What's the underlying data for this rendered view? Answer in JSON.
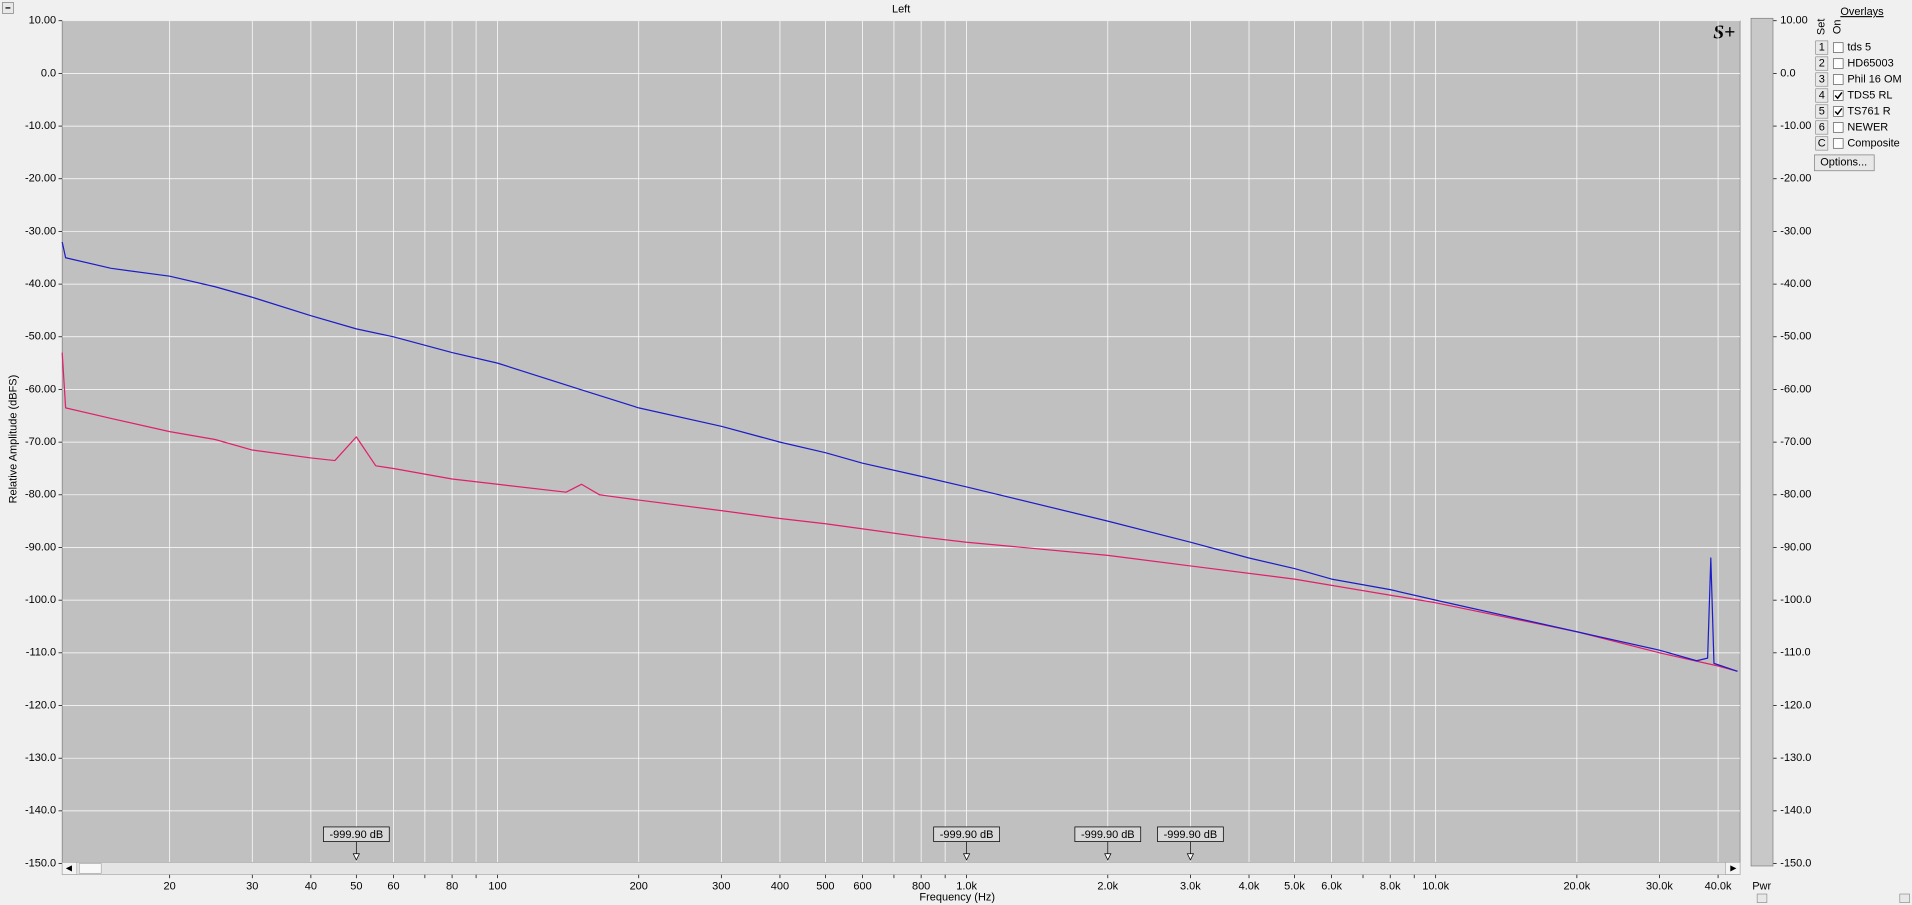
{
  "chart_data": {
    "type": "line",
    "title": "Left",
    "x_label": "Frequency (Hz)",
    "y_label": "Relative Amplitude (dBFS)",
    "logo": "S+",
    "xscale": "log",
    "xlim": [
      11.8,
      44560
    ],
    "ylim": [
      -150,
      10
    ],
    "y2lim": [
      -150,
      10
    ],
    "grid": true,
    "xticks": [
      20,
      30,
      40,
      50,
      60,
      80,
      100,
      200,
      300,
      400,
      500,
      600,
      800,
      {
        "value": 1000,
        "label": "1.0k"
      },
      {
        "value": 2000,
        "label": "2.0k"
      },
      {
        "value": 3000,
        "label": "3.0k"
      },
      {
        "value": 4000,
        "label": "4.0k"
      },
      {
        "value": 5000,
        "label": "5.0k"
      },
      {
        "value": 6000,
        "label": "6.0k"
      },
      {
        "value": 8000,
        "label": "8.0k"
      },
      {
        "value": 10000,
        "label": "10.0k"
      },
      {
        "value": 20000,
        "label": "20.0k"
      },
      {
        "value": 30000,
        "label": "30.0k"
      },
      {
        "value": 40000,
        "label": "40.0k"
      }
    ],
    "xminor_ticks": [
      70,
      90,
      700,
      900,
      7000,
      9000
    ],
    "yticks": [
      {
        "value": 10,
        "label": "10.00"
      },
      {
        "value": 0,
        "label": "0.0"
      },
      {
        "value": -10,
        "label": "-10.00"
      },
      {
        "value": -20,
        "label": "-20.00"
      },
      {
        "value": -30,
        "label": "-30.00"
      },
      {
        "value": -40,
        "label": "-40.00"
      },
      {
        "value": -50,
        "label": "-50.00"
      },
      {
        "value": -60,
        "label": "-60.00"
      },
      {
        "value": -70,
        "label": "-70.00"
      },
      {
        "value": -80,
        "label": "-80.00"
      },
      {
        "value": -90,
        "label": "-90.00"
      },
      {
        "value": -100,
        "label": "-100.0"
      },
      {
        "value": -110,
        "label": "-110.0"
      },
      {
        "value": -120,
        "label": "-120.0"
      },
      {
        "value": -130,
        "label": "-130.0"
      },
      {
        "value": -140,
        "label": "-140.0"
      },
      {
        "value": -150,
        "label": "-150.0"
      }
    ],
    "y2ticks": [
      {
        "value": 10,
        "label": "10.00"
      },
      {
        "value": 0,
        "label": "0.0"
      },
      {
        "value": -10,
        "label": "-10.00"
      },
      {
        "value": -20,
        "label": "-20.00"
      },
      {
        "value": -30,
        "label": "-30.00"
      },
      {
        "value": -40,
        "label": "-40.00"
      },
      {
        "value": -50,
        "label": "-50.00"
      },
      {
        "value": -60,
        "label": "-60.00"
      },
      {
        "value": -70,
        "label": "-70.00"
      },
      {
        "value": -80,
        "label": "-80.00"
      },
      {
        "value": -90,
        "label": "-90.00"
      },
      {
        "value": -100,
        "label": "-100.0"
      },
      {
        "value": -110,
        "label": "-110.0"
      },
      {
        "value": -120,
        "label": "-120.0"
      },
      {
        "value": -130,
        "label": "-130.0"
      },
      {
        "value": -140,
        "label": "-140.0"
      },
      {
        "value": -150,
        "label": "-150.0"
      }
    ],
    "y2_label": "Pwr",
    "meter_value": -150,
    "markers": [
      {
        "x": 50,
        "label": "-999.90 dB"
      },
      {
        "x": 1000,
        "label": "-999.90 dB"
      },
      {
        "x": 2000,
        "label": "-999.90 dB"
      },
      {
        "x": 3000,
        "label": "-999.90 dB"
      }
    ],
    "series": [
      {
        "name": "TDS5 RL",
        "set": "4",
        "on": true,
        "color": "#e0206a",
        "x": [
          11.8,
          12,
          15,
          20,
          25,
          30,
          40,
          45,
          50,
          55,
          60,
          80,
          100,
          140,
          151,
          165,
          200,
          300,
          400,
          500,
          800,
          1000,
          2000,
          3000,
          5000,
          10000,
          20000,
          30000,
          40000,
          44000
        ],
        "values": [
          -53,
          -63.5,
          -65.5,
          -68,
          -69.5,
          -71.5,
          -73,
          -73.5,
          -69,
          -74.5,
          -75,
          -77,
          -78,
          -79.5,
          -78,
          -80,
          -81,
          -83,
          -84.5,
          -85.5,
          -88,
          -89,
          -91.5,
          -93.5,
          -96,
          -100.5,
          -106,
          -110,
          -112.5,
          -113.5
        ]
      },
      {
        "name": "TS761 R",
        "set": "5",
        "on": true,
        "color": "#1c1cc8",
        "x": [
          11.8,
          12,
          15,
          20,
          25,
          30,
          40,
          50,
          60,
          80,
          100,
          150,
          200,
          300,
          400,
          500,
          600,
          800,
          1000,
          2000,
          3000,
          4000,
          5000,
          6000,
          8000,
          10000,
          20000,
          30000,
          36000,
          38000,
          38600,
          39200,
          44000
        ],
        "values": [
          -32,
          -35,
          -37,
          -38.5,
          -40.5,
          -42.5,
          -46,
          -48.5,
          -50,
          -53,
          -55,
          -60,
          -63.5,
          -67,
          -70,
          -72,
          -74,
          -76.5,
          -78.5,
          -85,
          -89,
          -92,
          -94,
          -96,
          -98,
          -100,
          -106,
          -109.5,
          -111.5,
          -111,
          -92,
          -112,
          -113.5
        ]
      }
    ]
  },
  "overlays": {
    "title": "Overlays",
    "set_header": "Set",
    "on_header": "On",
    "button": "Options...",
    "rows": [
      {
        "set": "1",
        "name": "tds 5",
        "color": "#33d6ee",
        "on": false
      },
      {
        "set": "2",
        "name": "HD65003",
        "color": "#f4f41e",
        "on": false
      },
      {
        "set": "3",
        "name": "Phil 16 OM",
        "color": "#22e022",
        "on": false
      },
      {
        "set": "6",
        "name": "NEWER",
        "color": "#f08cf0",
        "on": false
      },
      {
        "set": "C",
        "name": "Composite",
        "color": "#000000",
        "on": false
      }
    ]
  }
}
